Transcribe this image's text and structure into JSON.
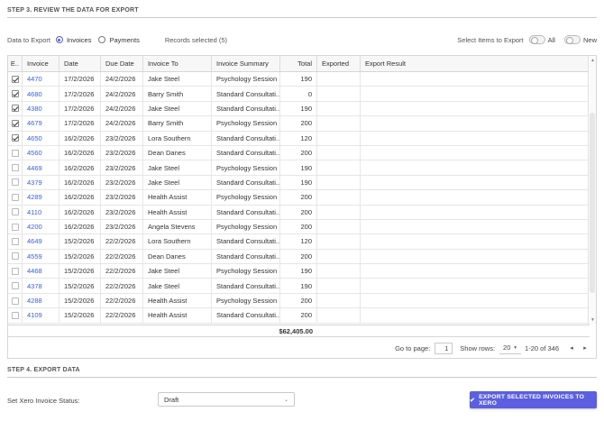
{
  "step3": {
    "title": "STEP 3. REVIEW THE DATA FOR EXPORT"
  },
  "options": {
    "data_to_export_label": "Data to Export",
    "radio_invoices": "Invoices",
    "radio_payments": "Payments",
    "selected_radio": "Invoices",
    "records_selected": "Records selected (5)",
    "select_items_label": "Select Items to Export",
    "toggle_all": "All",
    "toggle_new": "New"
  },
  "table": {
    "columns": [
      "E..",
      "Invoice",
      "Date",
      "Due Date",
      "Invoice To",
      "Invoice Summary",
      "Total",
      "Exported",
      "Export Result"
    ],
    "rows": [
      {
        "checked": true,
        "invoice": "4470",
        "date": "17/2/2026",
        "due": "24/2/2026",
        "to": "Jake Steel",
        "summary": "Psychology Session",
        "total": "190",
        "exported": "",
        "result": ""
      },
      {
        "checked": true,
        "invoice": "4680",
        "date": "17/2/2026",
        "due": "24/2/2026",
        "to": "Barry Smith",
        "summary": "Standard Consultati...",
        "total": "0",
        "exported": "",
        "result": ""
      },
      {
        "checked": true,
        "invoice": "4380",
        "date": "17/2/2026",
        "due": "24/2/2026",
        "to": "Jake Steel",
        "summary": "Standard Consultati...",
        "total": "190",
        "exported": "",
        "result": ""
      },
      {
        "checked": true,
        "invoice": "4679",
        "date": "17/2/2026",
        "due": "24/2/2026",
        "to": "Barry Smith",
        "summary": "Psychology Session",
        "total": "200",
        "exported": "",
        "result": ""
      },
      {
        "checked": true,
        "invoice": "4650",
        "date": "16/2/2026",
        "due": "23/2/2026",
        "to": "Lora Southern",
        "summary": "Standard Consultati...",
        "total": "120",
        "exported": "",
        "result": ""
      },
      {
        "checked": false,
        "invoice": "4560",
        "date": "16/2/2026",
        "due": "23/2/2026",
        "to": "Dean Danes",
        "summary": "Standard Consultati...",
        "total": "200",
        "exported": "",
        "result": ""
      },
      {
        "checked": false,
        "invoice": "4469",
        "date": "16/2/2026",
        "due": "23/2/2026",
        "to": "Jake Steel",
        "summary": "Psychology Session",
        "total": "190",
        "exported": "",
        "result": ""
      },
      {
        "checked": false,
        "invoice": "4379",
        "date": "16/2/2026",
        "due": "23/2/2026",
        "to": "Jake Steel",
        "summary": "Standard Consultati...",
        "total": "190",
        "exported": "",
        "result": ""
      },
      {
        "checked": false,
        "invoice": "4289",
        "date": "16/2/2026",
        "due": "23/2/2026",
        "to": "Health Assist",
        "summary": "Psychology Session",
        "total": "200",
        "exported": "",
        "result": ""
      },
      {
        "checked": false,
        "invoice": "4110",
        "date": "16/2/2026",
        "due": "23/2/2026",
        "to": "Health Assist",
        "summary": "Standard Consultati...",
        "total": "200",
        "exported": "",
        "result": ""
      },
      {
        "checked": false,
        "invoice": "4200",
        "date": "16/2/2026",
        "due": "23/2/2026",
        "to": "Angela Stevens",
        "summary": "Psychology Session",
        "total": "200",
        "exported": "",
        "result": ""
      },
      {
        "checked": false,
        "invoice": "4649",
        "date": "15/2/2026",
        "due": "22/2/2026",
        "to": "Lora Southern",
        "summary": "Standard Consultati...",
        "total": "120",
        "exported": "",
        "result": ""
      },
      {
        "checked": false,
        "invoice": "4559",
        "date": "15/2/2026",
        "due": "22/2/2026",
        "to": "Dean Danes",
        "summary": "Standard Consultati...",
        "total": "200",
        "exported": "",
        "result": ""
      },
      {
        "checked": false,
        "invoice": "4468",
        "date": "15/2/2026",
        "due": "22/2/2026",
        "to": "Jake Steel",
        "summary": "Psychology Session",
        "total": "190",
        "exported": "",
        "result": ""
      },
      {
        "checked": false,
        "invoice": "4378",
        "date": "15/2/2026",
        "due": "22/2/2026",
        "to": "Jake Steel",
        "summary": "Standard Consultati...",
        "total": "190",
        "exported": "",
        "result": ""
      },
      {
        "checked": false,
        "invoice": "4288",
        "date": "15/2/2026",
        "due": "22/2/2026",
        "to": "Health Assist",
        "summary": "Psychology Session",
        "total": "200",
        "exported": "",
        "result": ""
      },
      {
        "checked": false,
        "invoice": "4109",
        "date": "15/2/2026",
        "due": "22/2/2026",
        "to": "Health Assist",
        "summary": "Standard Consultati...",
        "total": "200",
        "exported": "",
        "result": ""
      }
    ],
    "grand_total": "$62,405.00"
  },
  "pager": {
    "go_to_label": "Go to page:",
    "page_value": "1",
    "show_rows_label": "Show rows:",
    "rows_value": "20",
    "range_text": "1-20 of 346"
  },
  "step4": {
    "title": "STEP 4. EXPORT DATA",
    "xero_status_label": "Set Xero Invoice Status:",
    "xero_status_value": "Draft",
    "export_button": "EXPORT SELECTED INVOICES TO XERO"
  },
  "colors": {
    "accent": "#5b5fe0",
    "link": "#3b5fd9"
  },
  "icons": {
    "checkbox": "checkbox-icon",
    "chevron": "chevron-down-icon",
    "prev": "chevron-left-icon",
    "next": "chevron-right-icon",
    "export": "check-icon"
  }
}
